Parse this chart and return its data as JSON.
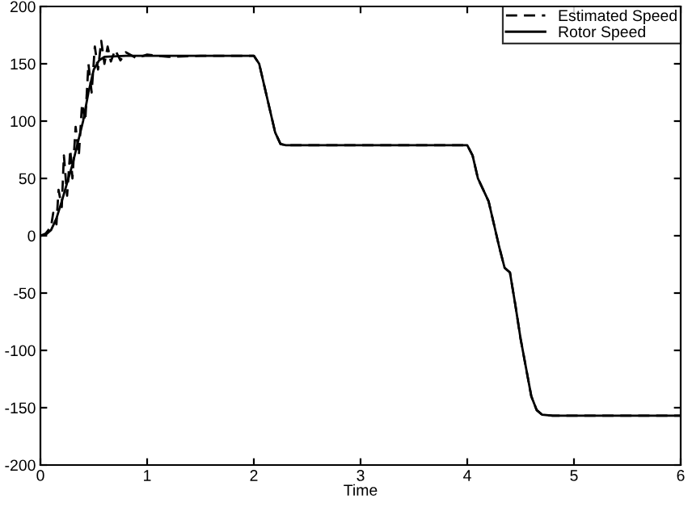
{
  "chart_data": {
    "type": "line",
    "xlabel": "Time",
    "xlim": [
      0,
      6
    ],
    "xticks": [
      0,
      1,
      2,
      3,
      4,
      5,
      6
    ],
    "ylim": [
      -200,
      200
    ],
    "yticks": [
      -200,
      -150,
      -100,
      -50,
      0,
      50,
      100,
      150,
      200
    ],
    "grid": false,
    "legend": "top right",
    "series": [
      {
        "name": "Estimated Speed",
        "color": "#000000",
        "line_style": "dashed",
        "x": [
          0,
          0.05,
          0.1,
          0.12,
          0.15,
          0.17,
          0.2,
          0.22,
          0.25,
          0.28,
          0.3,
          0.33,
          0.36,
          0.39,
          0.42,
          0.45,
          0.48,
          0.51,
          0.54,
          0.57,
          0.6,
          0.63,
          0.66,
          0.7,
          0.75,
          0.8,
          0.9,
          1.0,
          1.2,
          1.5,
          2.0,
          2.05,
          2.1,
          2.15,
          2.2,
          2.25,
          2.3,
          4.0,
          4.05,
          4.1,
          4.15,
          4.2,
          4.25,
          4.3,
          4.35,
          4.4,
          4.45,
          4.5,
          4.55,
          4.6,
          4.65,
          4.7,
          4.8,
          6.0
        ],
        "values": [
          0,
          2,
          8,
          20,
          10,
          40,
          25,
          70,
          35,
          75,
          50,
          95,
          70,
          115,
          100,
          150,
          125,
          165,
          145,
          170,
          150,
          165,
          152,
          162,
          153,
          160,
          155,
          158,
          156,
          157,
          157,
          150,
          130,
          110,
          90,
          80,
          79,
          79,
          70,
          50,
          40,
          30,
          10,
          -10,
          -28,
          -32,
          -60,
          -90,
          -115,
          -140,
          -152,
          -156,
          -157,
          -157
        ]
      },
      {
        "name": "Rotor Speed",
        "color": "#000000",
        "line_style": "solid",
        "x": [
          0,
          0.05,
          0.1,
          0.15,
          0.2,
          0.3,
          0.4,
          0.45,
          0.5,
          0.55,
          0.6,
          0.8,
          2.0,
          2.05,
          2.1,
          2.15,
          2.2,
          2.25,
          2.3,
          4.0,
          4.05,
          4.1,
          4.15,
          4.2,
          4.25,
          4.3,
          4.35,
          4.4,
          4.45,
          4.5,
          4.55,
          4.6,
          4.65,
          4.7,
          4.8,
          6.0
        ],
        "values": [
          0,
          1,
          5,
          15,
          30,
          62,
          100,
          125,
          145,
          153,
          156,
          157,
          157,
          150,
          130,
          110,
          90,
          80,
          79,
          79,
          70,
          50,
          40,
          30,
          10,
          -10,
          -28,
          -32,
          -60,
          -90,
          -115,
          -140,
          -152,
          -156,
          -157,
          -157
        ]
      }
    ]
  }
}
